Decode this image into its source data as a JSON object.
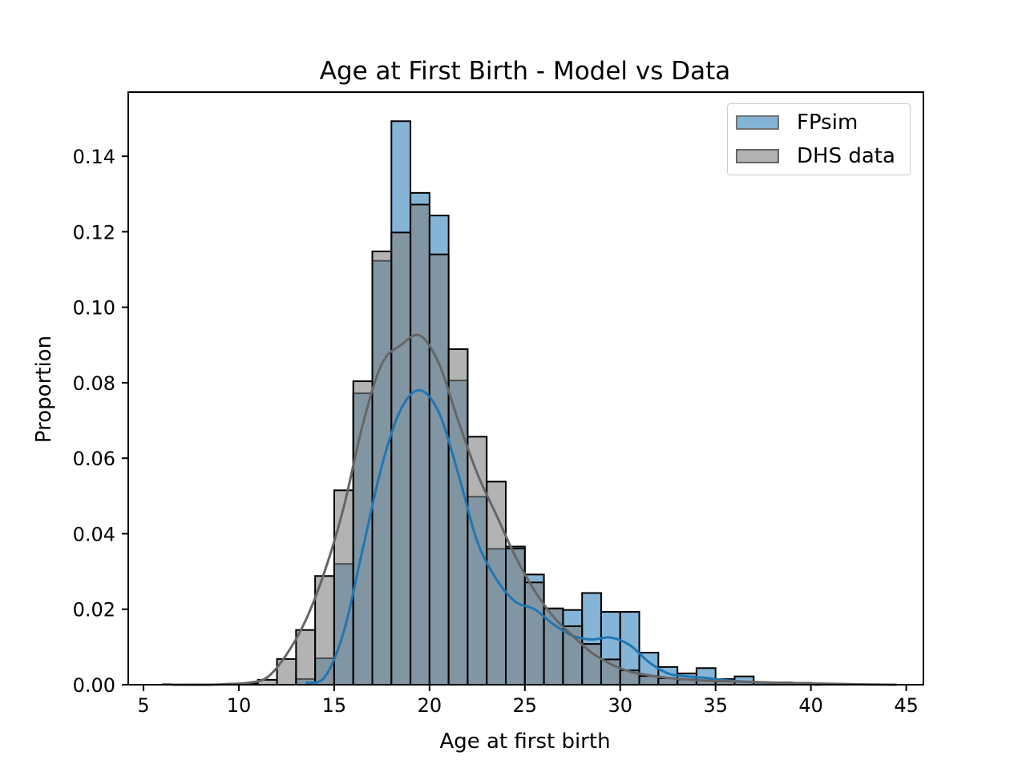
{
  "chart_data": {
    "type": "bar",
    "title": "Age at First Birth - Model vs Data",
    "xlabel": "Age at first birth",
    "ylabel": "Proportion",
    "xlim": [
      4.2,
      45.9
    ],
    "ylim": [
      0.0,
      0.157
    ],
    "xticks": [
      5,
      10,
      15,
      20,
      25,
      30,
      35,
      40,
      45
    ],
    "yticks": [
      0.0,
      0.02,
      0.04,
      0.06,
      0.08,
      0.1,
      0.12,
      0.14
    ],
    "ytick_labels": [
      "0.00",
      "0.02",
      "0.04",
      "0.06",
      "0.08",
      "0.10",
      "0.12",
      "0.14"
    ],
    "bin_width": 1,
    "grid": false,
    "legend_position": "top-right",
    "series": [
      {
        "name": "FPsim",
        "color": "#1f77b4",
        "bins": [
          [
            13,
            0.0015
          ],
          [
            14,
            0.007
          ],
          [
            15,
            0.032
          ],
          [
            16,
            0.0772
          ],
          [
            17,
            0.1123
          ],
          [
            18,
            0.1493
          ],
          [
            19,
            0.1303
          ],
          [
            20,
            0.1243
          ],
          [
            21,
            0.0806
          ],
          [
            22,
            0.0498
          ],
          [
            23,
            0.036
          ],
          [
            24,
            0.0366
          ],
          [
            25,
            0.0292
          ],
          [
            26,
            0.0202
          ],
          [
            27,
            0.0198
          ],
          [
            28,
            0.0243
          ],
          [
            29,
            0.0193
          ],
          [
            30,
            0.0193
          ],
          [
            31,
            0.0085
          ],
          [
            32,
            0.0047
          ],
          [
            33,
            0.003
          ],
          [
            34,
            0.0044
          ],
          [
            35,
            0.0015
          ],
          [
            36,
            0.0022
          ],
          [
            37,
            0.0006
          ],
          [
            38,
            0.0006
          ],
          [
            39,
            0.0005
          ]
        ],
        "kde": [
          [
            13,
            0.0005
          ],
          [
            14,
            0.002
          ],
          [
            15,
            0.014
          ],
          [
            16,
            0.036
          ],
          [
            17,
            0.058
          ],
          [
            18,
            0.073
          ],
          [
            19,
            0.078
          ],
          [
            20,
            0.072
          ],
          [
            21,
            0.056
          ],
          [
            22,
            0.038
          ],
          [
            23,
            0.028
          ],
          [
            24,
            0.022
          ],
          [
            25,
            0.02
          ],
          [
            26,
            0.016
          ],
          [
            27,
            0.013
          ],
          [
            28,
            0.012
          ],
          [
            29,
            0.0125
          ],
          [
            30,
            0.0105
          ],
          [
            31,
            0.006
          ],
          [
            32,
            0.003
          ],
          [
            33,
            0.0022
          ],
          [
            34,
            0.0018
          ],
          [
            35,
            0.0012
          ],
          [
            36,
            0.0008
          ],
          [
            37,
            0.0006
          ],
          [
            38,
            0.0004
          ],
          [
            39,
            0.0002
          ],
          [
            40,
            0.0
          ]
        ]
      },
      {
        "name": "DHS data",
        "color": "#808080",
        "bins": [
          [
            6,
            0.0001
          ],
          [
            7,
            0.0001
          ],
          [
            8,
            0.0001
          ],
          [
            9,
            0.0001
          ],
          [
            10,
            0.0003
          ],
          [
            11,
            0.0013
          ],
          [
            12,
            0.0068
          ],
          [
            13,
            0.0145
          ],
          [
            14,
            0.0288
          ],
          [
            15,
            0.0515
          ],
          [
            16,
            0.0804
          ],
          [
            17,
            0.1148
          ],
          [
            18,
            0.1198
          ],
          [
            19,
            0.1272
          ],
          [
            20,
            0.114
          ],
          [
            21,
            0.0889
          ],
          [
            22,
            0.0657
          ],
          [
            23,
            0.0538
          ],
          [
            24,
            0.0361
          ],
          [
            25,
            0.0271
          ],
          [
            26,
            0.0202
          ],
          [
            27,
            0.0155
          ],
          [
            28,
            0.0108
          ],
          [
            29,
            0.0067
          ],
          [
            30,
            0.0038
          ],
          [
            31,
            0.0023
          ],
          [
            32,
            0.0017
          ],
          [
            33,
            0.0014
          ],
          [
            34,
            0.0011
          ],
          [
            35,
            0.0009
          ],
          [
            36,
            0.0008
          ],
          [
            37,
            0.0006
          ],
          [
            38,
            0.0005
          ],
          [
            39,
            0.0004
          ],
          [
            40,
            0.0002
          ],
          [
            41,
            0.0002
          ],
          [
            42,
            0.0001
          ],
          [
            43,
            0.0001
          ]
        ],
        "kde": [
          [
            6,
            0.0
          ],
          [
            8,
            0.0
          ],
          [
            9,
            0.0002
          ],
          [
            10,
            0.0005
          ],
          [
            11,
            0.002
          ],
          [
            12,
            0.008
          ],
          [
            13,
            0.017
          ],
          [
            14,
            0.03
          ],
          [
            15,
            0.047
          ],
          [
            16,
            0.069
          ],
          [
            17,
            0.085
          ],
          [
            18,
            0.09
          ],
          [
            19,
            0.0925
          ],
          [
            20,
            0.085
          ],
          [
            21,
            0.07
          ],
          [
            22,
            0.056
          ],
          [
            23,
            0.045
          ],
          [
            24,
            0.034
          ],
          [
            25,
            0.025
          ],
          [
            26,
            0.018
          ],
          [
            27,
            0.013
          ],
          [
            28,
            0.0085
          ],
          [
            29,
            0.0055
          ],
          [
            30,
            0.0035
          ],
          [
            31,
            0.0025
          ],
          [
            32,
            0.0018
          ],
          [
            33,
            0.0014
          ],
          [
            34,
            0.0011
          ],
          [
            36,
            0.0008
          ],
          [
            38,
            0.0005
          ],
          [
            40,
            0.0003
          ],
          [
            42,
            0.0001
          ],
          [
            44,
            0.0
          ]
        ]
      }
    ]
  }
}
